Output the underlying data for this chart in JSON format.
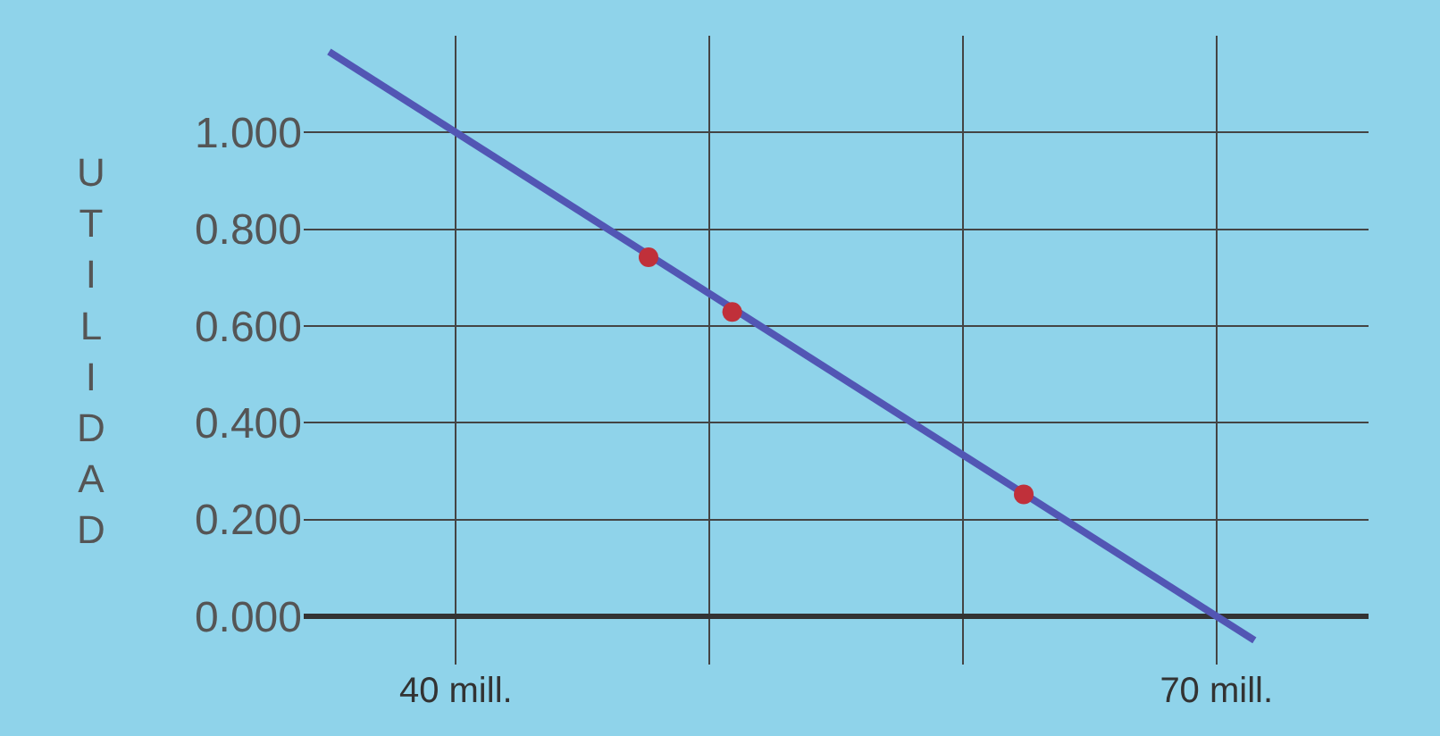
{
  "chart_data": {
    "type": "line",
    "ylabel": "UTILIDAD",
    "series": [
      {
        "color": "#5256b4",
        "marker": "none",
        "x": [
          35,
          71.5
        ],
        "values": [
          1.167,
          -0.05
        ]
      },
      {
        "type": "scatter",
        "marker": "circle",
        "color": "#c0303a",
        "x": [
          47.6,
          50.9,
          62.4
        ],
        "values": [
          0.742,
          0.629,
          0.252
        ]
      }
    ],
    "xlim": [
      34,
      76
    ],
    "xticks": [
      {
        "value": 40,
        "label": "40 mill."
      },
      {
        "value": 50,
        "label": null
      },
      {
        "value": 60,
        "label": null
      },
      {
        "value": 70,
        "label": "70 mill."
      }
    ],
    "ylim": [
      -0.1,
      1.2
    ],
    "yticks": [
      {
        "value": 0,
        "label": "0.000"
      },
      {
        "value": 0.2,
        "label": "0.200"
      },
      {
        "value": 0.4,
        "label": "0.400"
      },
      {
        "value": 0.6,
        "label": "0.600"
      },
      {
        "value": 0.8,
        "label": "0.800"
      },
      {
        "value": 1.0,
        "label": "1.000"
      }
    ],
    "grid": true,
    "legend": false
  }
}
